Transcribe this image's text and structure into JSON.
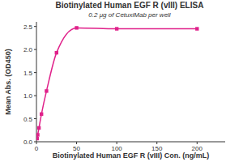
{
  "chart_data": {
    "type": "line",
    "title": "Biotinylated Human EGF R (vIII) ELISA",
    "subtitle": "0.2 μg of CetuxiMab per well",
    "x_label": "Biotinylated Human EGF R (vIII) Con. (ng/mL)",
    "y_label": "Mean Abs. (OD450)",
    "x": [
      0.78,
      1.56,
      3.125,
      6.25,
      12.5,
      25,
      50,
      100,
      200
    ],
    "values": [
      0.07,
      0.15,
      0.3,
      0.6,
      1.1,
      1.93,
      2.47,
      2.45,
      2.45
    ],
    "color": "#e0218a",
    "marker": "square",
    "line_style": "smooth",
    "xlim": [
      0,
      235
    ],
    "xticks": [
      0,
      50,
      100,
      150,
      200
    ],
    "ylim": [
      0,
      2.6
    ],
    "yticks": [
      {
        "value": 0,
        "label": "0.0"
      },
      0.5,
      {
        "value": 1,
        "label": "1.0"
      },
      1.5,
      {
        "value": 2,
        "label": "2.0"
      },
      2.5
    ],
    "grid": false
  }
}
